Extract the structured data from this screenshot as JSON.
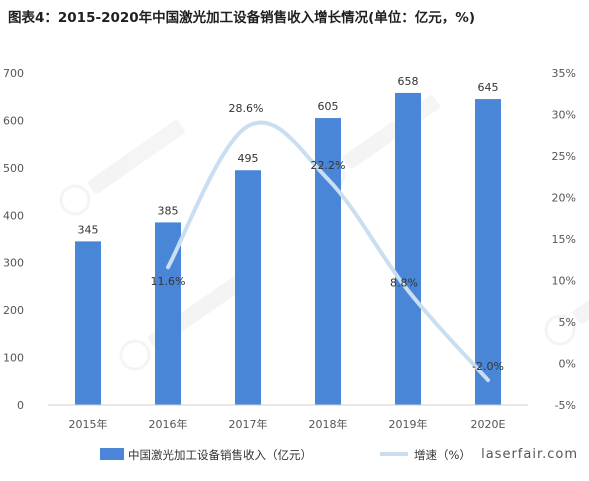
{
  "title": "图表4：2015-2020年中国激光加工设备销售收入增长情况(单位：亿元，%)",
  "watermark": "laserfair.com",
  "colors": {
    "bar": "#4a86d8",
    "line": "#c9dff1"
  },
  "chart_data": {
    "type": "bar",
    "categories": [
      "2015年",
      "2016年",
      "2017年",
      "2018年",
      "2019年",
      "2020E"
    ],
    "series": [
      {
        "name": "中国激光加工设备销售收入（亿元）",
        "type": "bar",
        "axis": "left",
        "values": [
          345,
          385,
          495,
          605,
          658,
          645
        ],
        "labels": [
          "345",
          "385",
          "495",
          "605",
          "658",
          "645"
        ]
      },
      {
        "name": "增速（%）",
        "type": "line",
        "axis": "right",
        "values": [
          null,
          11.6,
          28.6,
          22.2,
          8.8,
          -2.0
        ],
        "labels": [
          "",
          "11.6%",
          "28.6%",
          "22.2%",
          "8.8%",
          "-2.0%"
        ]
      }
    ],
    "y_left": {
      "range": [
        0,
        700
      ],
      "ticks": [
        "0",
        "100",
        "200",
        "300",
        "400",
        "500",
        "600",
        "700"
      ]
    },
    "y_right": {
      "range": [
        -5,
        35
      ],
      "ticks": [
        "-5%",
        "0%",
        "5%",
        "10%",
        "15%",
        "20%",
        "25%",
        "30%",
        "35%"
      ]
    },
    "grid": false,
    "legend": "bottom"
  }
}
